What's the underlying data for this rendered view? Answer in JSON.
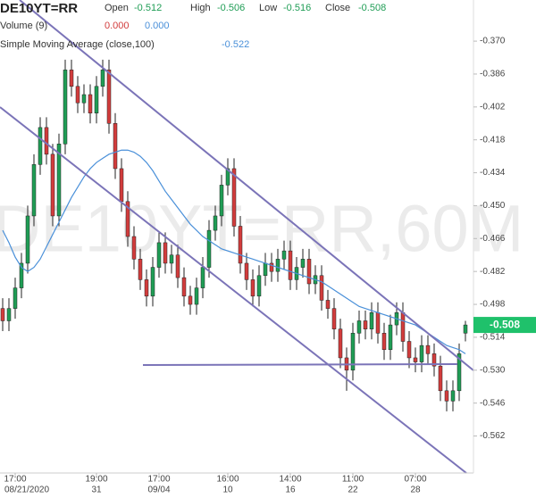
{
  "chart_data": {
    "type": "candlestick",
    "title": "DE10YT=RR",
    "watermark": "DE10YT=RR,60M",
    "ohlc_labels": [
      "Open",
      "High",
      "Low",
      "Close"
    ],
    "up_color": "#1f9d55",
    "down_color": "#d23c3c",
    "candles": {
      "open": [
        -0.5,
        -0.506,
        -0.5,
        -0.49,
        -0.478,
        -0.455,
        -0.43,
        -0.412,
        -0.425,
        -0.455,
        -0.42,
        -0.384,
        -0.392,
        -0.4,
        -0.396,
        -0.405,
        -0.392,
        -0.384,
        -0.41,
        -0.432,
        -0.448,
        -0.465,
        -0.476,
        -0.486,
        -0.494,
        -0.48,
        -0.468,
        -0.478,
        -0.474,
        -0.485,
        -0.494,
        -0.498,
        -0.49,
        -0.48,
        -0.462,
        -0.455,
        -0.44,
        -0.432,
        -0.46,
        -0.478,
        -0.486,
        -0.494,
        -0.484,
        -0.478,
        -0.482,
        -0.476,
        -0.472,
        -0.486,
        -0.48,
        -0.476,
        -0.488,
        -0.484,
        -0.496,
        -0.5,
        -0.51,
        -0.524,
        -0.53,
        -0.512,
        -0.506,
        -0.51,
        -0.502,
        -0.512,
        -0.52,
        -0.508,
        -0.502,
        -0.516,
        -0.524,
        -0.526,
        -0.518,
        -0.522,
        -0.528,
        -0.54,
        -0.545,
        -0.54,
        -0.512
      ],
      "high": [
        -0.495,
        -0.495,
        -0.485,
        -0.473,
        -0.45,
        -0.425,
        -0.407,
        -0.407,
        -0.42,
        -0.415,
        -0.379,
        -0.379,
        -0.387,
        -0.391,
        -0.391,
        -0.387,
        -0.379,
        -0.379,
        -0.405,
        -0.427,
        -0.443,
        -0.46,
        -0.471,
        -0.481,
        -0.475,
        -0.463,
        -0.463,
        -0.469,
        -0.469,
        -0.48,
        -0.489,
        -0.485,
        -0.475,
        -0.457,
        -0.45,
        -0.435,
        -0.427,
        -0.427,
        -0.455,
        -0.473,
        -0.481,
        -0.479,
        -0.473,
        -0.473,
        -0.471,
        -0.467,
        -0.467,
        -0.475,
        -0.471,
        -0.471,
        -0.479,
        -0.479,
        -0.491,
        -0.495,
        -0.505,
        -0.519,
        -0.507,
        -0.501,
        -0.501,
        -0.497,
        -0.497,
        -0.507,
        -0.503,
        -0.497,
        -0.497,
        -0.511,
        -0.519,
        -0.513,
        -0.513,
        -0.517,
        -0.523,
        -0.535,
        -0.535,
        -0.517,
        -0.506
      ],
      "low": [
        -0.511,
        -0.511,
        -0.505,
        -0.495,
        -0.483,
        -0.46,
        -0.435,
        -0.43,
        -0.46,
        -0.46,
        -0.425,
        -0.397,
        -0.405,
        -0.405,
        -0.41,
        -0.41,
        -0.397,
        -0.415,
        -0.437,
        -0.453,
        -0.47,
        -0.481,
        -0.491,
        -0.499,
        -0.499,
        -0.485,
        -0.483,
        -0.483,
        -0.49,
        -0.499,
        -0.503,
        -0.503,
        -0.495,
        -0.485,
        -0.467,
        -0.46,
        -0.445,
        -0.465,
        -0.483,
        -0.491,
        -0.499,
        -0.499,
        -0.489,
        -0.487,
        -0.487,
        -0.481,
        -0.491,
        -0.491,
        -0.485,
        -0.493,
        -0.493,
        -0.501,
        -0.505,
        -0.515,
        -0.529,
        -0.54,
        -0.535,
        -0.517,
        -0.515,
        -0.515,
        -0.517,
        -0.525,
        -0.525,
        -0.513,
        -0.521,
        -0.529,
        -0.531,
        -0.531,
        -0.527,
        -0.533,
        -0.545,
        -0.55,
        -0.55,
        -0.545,
        -0.516
      ],
      "close": [
        -0.506,
        -0.5,
        -0.49,
        -0.478,
        -0.455,
        -0.43,
        -0.412,
        -0.425,
        -0.455,
        -0.42,
        -0.384,
        -0.392,
        -0.4,
        -0.396,
        -0.405,
        -0.392,
        -0.384,
        -0.41,
        -0.432,
        -0.448,
        -0.465,
        -0.476,
        -0.486,
        -0.494,
        -0.48,
        -0.468,
        -0.478,
        -0.474,
        -0.485,
        -0.494,
        -0.498,
        -0.49,
        -0.48,
        -0.462,
        -0.455,
        -0.44,
        -0.432,
        -0.46,
        -0.478,
        -0.486,
        -0.494,
        -0.484,
        -0.478,
        -0.482,
        -0.476,
        -0.472,
        -0.486,
        -0.48,
        -0.476,
        -0.488,
        -0.484,
        -0.496,
        -0.5,
        -0.51,
        -0.524,
        -0.53,
        -0.512,
        -0.506,
        -0.51,
        -0.502,
        -0.512,
        -0.52,
        -0.508,
        -0.502,
        -0.516,
        -0.524,
        -0.526,
        -0.518,
        -0.522,
        -0.528,
        -0.54,
        -0.545,
        -0.54,
        -0.522,
        -0.508
      ]
    },
    "series": [
      {
        "name": "Simple Moving Average (close,100)",
        "color": "#4a90d9",
        "values": [
          -0.462,
          -0.468,
          -0.475,
          -0.48,
          -0.482,
          -0.48,
          -0.476,
          -0.47,
          -0.464,
          -0.458,
          -0.452,
          -0.446,
          -0.441,
          -0.436,
          -0.432,
          -0.429,
          -0.427,
          -0.425,
          -0.424,
          -0.423,
          -0.423,
          -0.424,
          -0.426,
          -0.429,
          -0.433,
          -0.438,
          -0.443,
          -0.447,
          -0.451,
          -0.455,
          -0.459,
          -0.462,
          -0.465,
          -0.467,
          -0.469,
          -0.471,
          -0.472,
          -0.473,
          -0.474,
          -0.475,
          -0.476,
          -0.477,
          -0.478,
          -0.479,
          -0.48,
          -0.481,
          -0.482,
          -0.483,
          -0.484,
          -0.485,
          -0.486,
          -0.487,
          -0.489,
          -0.491,
          -0.493,
          -0.495,
          -0.497,
          -0.499,
          -0.5,
          -0.501,
          -0.502,
          -0.503,
          -0.504,
          -0.505,
          -0.506,
          -0.507,
          -0.508,
          -0.51,
          -0.512,
          -0.514,
          -0.516,
          -0.518,
          -0.519,
          -0.52,
          -0.522
        ]
      }
    ],
    "volume": {
      "label": "Volume (9)",
      "values": [
        0,
        0
      ],
      "value_labels": [
        "0.000",
        "0.000"
      ],
      "colors": [
        "#d23c3c",
        "#4a90d9"
      ]
    },
    "ylim": [
      -0.58,
      -0.35
    ],
    "yticks": [
      {
        "value": -0.37,
        "label": "-0.370"
      },
      -0.386,
      -0.402,
      -0.418,
      -0.434,
      {
        "value": -0.45,
        "label": "-0.450"
      },
      -0.466,
      -0.482,
      -0.498,
      -0.514,
      {
        "value": -0.53,
        "label": "-0.530"
      },
      -0.546,
      -0.562
    ],
    "xticks": [
      {
        "value": 2,
        "label": "17:00",
        "date": "08/21/2020"
      },
      {
        "value": 15,
        "label": "19:00",
        "date": "31"
      },
      {
        "value": 25,
        "label": "17:00",
        "date": "09/04"
      },
      {
        "value": 36,
        "label": "16:00",
        "date": "10"
      },
      {
        "value": 46,
        "label": "14:00",
        "date": "16"
      },
      {
        "value": 56,
        "label": "11:00",
        "date": "22"
      },
      {
        "value": 66,
        "label": "07:00",
        "date": "28"
      }
    ],
    "last_price_color": "#1fc16b"
  }
}
